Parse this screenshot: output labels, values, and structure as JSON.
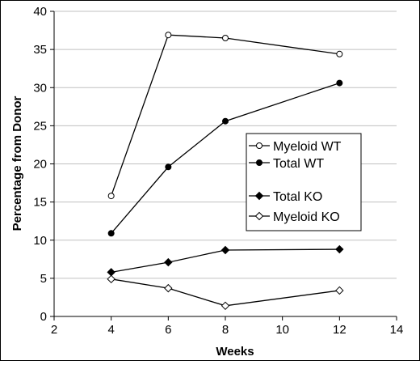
{
  "chart_data": {
    "type": "line",
    "title": "",
    "xlabel": "Weeks",
    "ylabel": "Percentage from Donor",
    "xlim": [
      2,
      14
    ],
    "ylim": [
      0,
      40
    ],
    "x_ticks": [
      2,
      4,
      6,
      8,
      10,
      12,
      14
    ],
    "y_ticks": [
      0,
      5,
      10,
      15,
      20,
      25,
      30,
      35,
      40
    ],
    "grid": "horizontal",
    "legend_position": "center-right",
    "x": [
      4,
      6,
      8,
      12
    ],
    "series": [
      {
        "name": "Myeloid WT",
        "values": [
          15.8,
          36.9,
          36.5,
          34.4
        ],
        "marker": "circle-open"
      },
      {
        "name": "Total WT",
        "values": [
          10.9,
          19.6,
          25.6,
          30.6
        ],
        "marker": "circle-filled"
      },
      {
        "name": "Total KO",
        "values": [
          5.8,
          7.1,
          8.7,
          8.8
        ],
        "marker": "diamond-filled"
      },
      {
        "name": "Myeloid KO",
        "values": [
          4.9,
          3.7,
          1.4,
          3.4
        ],
        "marker": "diamond-open"
      }
    ],
    "colors": {
      "line": "#000000",
      "grid": "#c0c0c0",
      "background": "#ffffff"
    }
  }
}
